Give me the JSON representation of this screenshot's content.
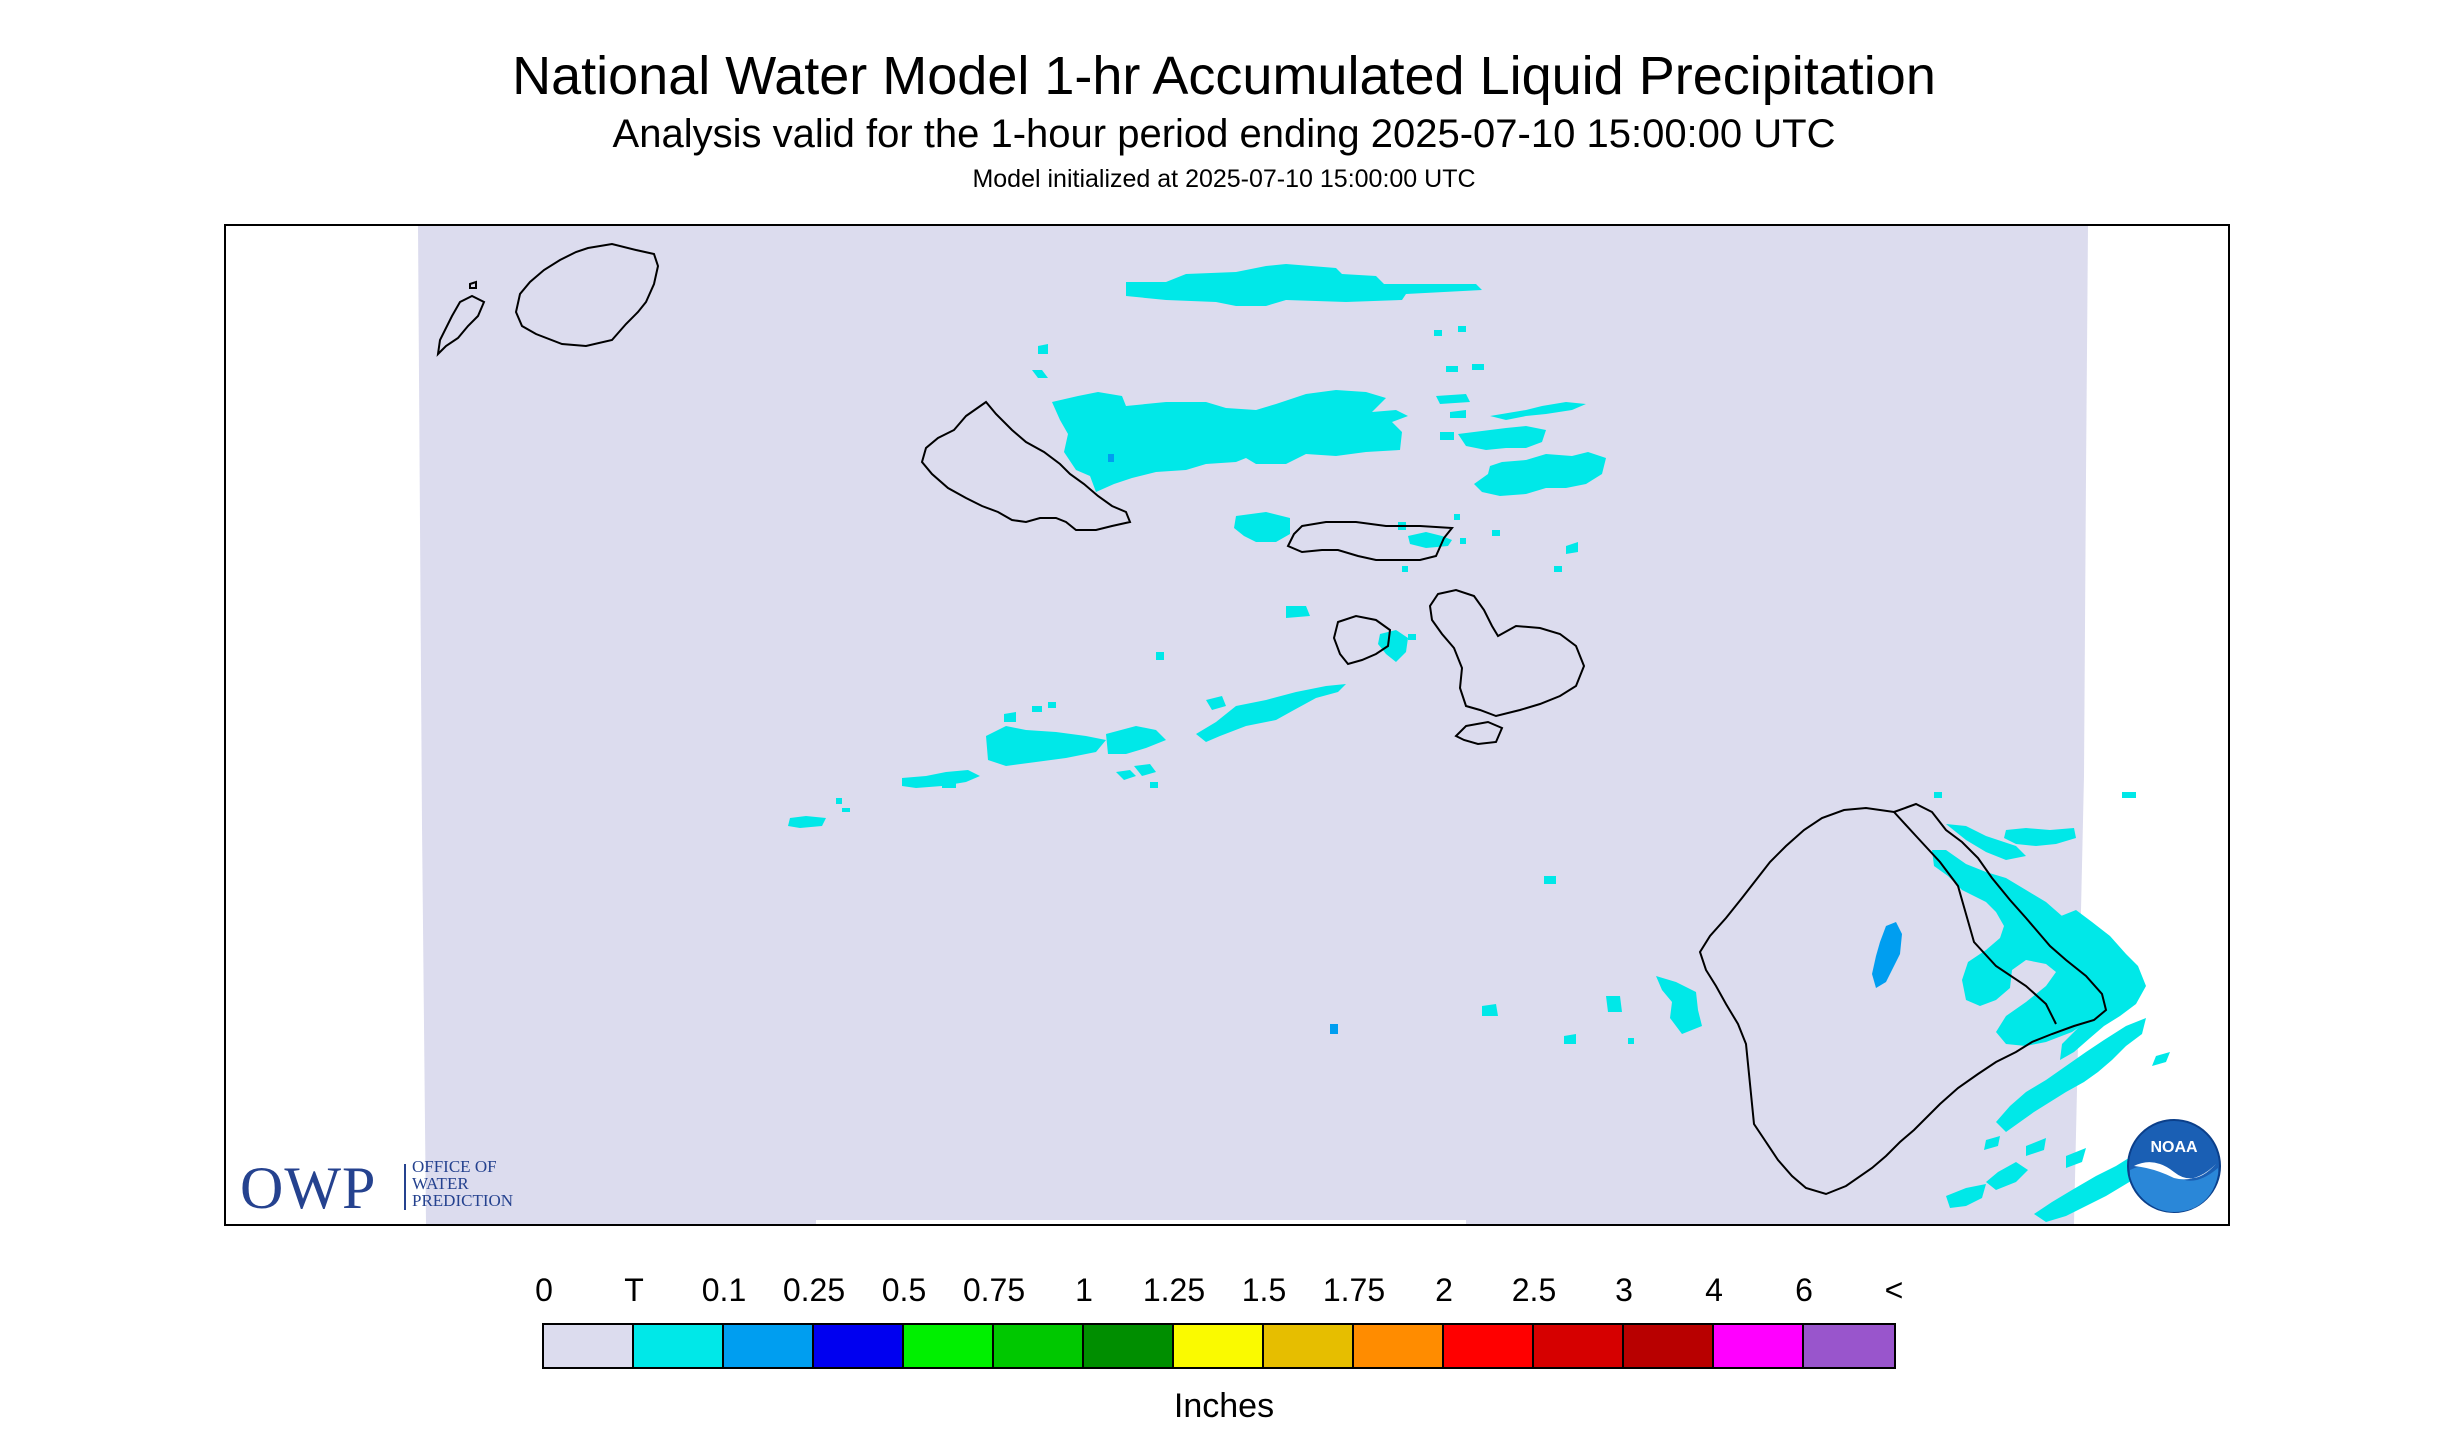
{
  "header": {
    "title": "National Water Model 1-hr Accumulated Liquid Precipitation",
    "subtitle": "Analysis valid for the 1-hour period ending 2025-07-10 15:00:00 UTC",
    "init": "Model initialized at 2025-07-10 15:00:00 UTC"
  },
  "logos": {
    "owp_letters": "OWP",
    "owp_line1": "OFFICE OF",
    "owp_line2": "WATER",
    "owp_line3": "PREDICTION",
    "noaa_text": "NOAA"
  },
  "legend": {
    "labels": [
      "0",
      "T",
      "0.1",
      "0.25",
      "0.5",
      "0.75",
      "1",
      "1.25",
      "1.5",
      "1.75",
      "2",
      "2.5",
      "3",
      "4",
      "6",
      "<"
    ],
    "colors": [
      "#dcdcee",
      "#00e8e8",
      "#009ef0",
      "#0000f0",
      "#00f000",
      "#00c800",
      "#008e00",
      "#fafa00",
      "#e6be00",
      "#ff8c00",
      "#ff0000",
      "#d60000",
      "#b80000",
      "#ff00ff",
      "#9955cc"
    ],
    "units": "Inches"
  },
  "map": {
    "background_color": "#dcdcee",
    "precip_light_color": "#00e8e8",
    "precip_moderate_color": "#009ef0",
    "outline_color": "#000000"
  }
}
